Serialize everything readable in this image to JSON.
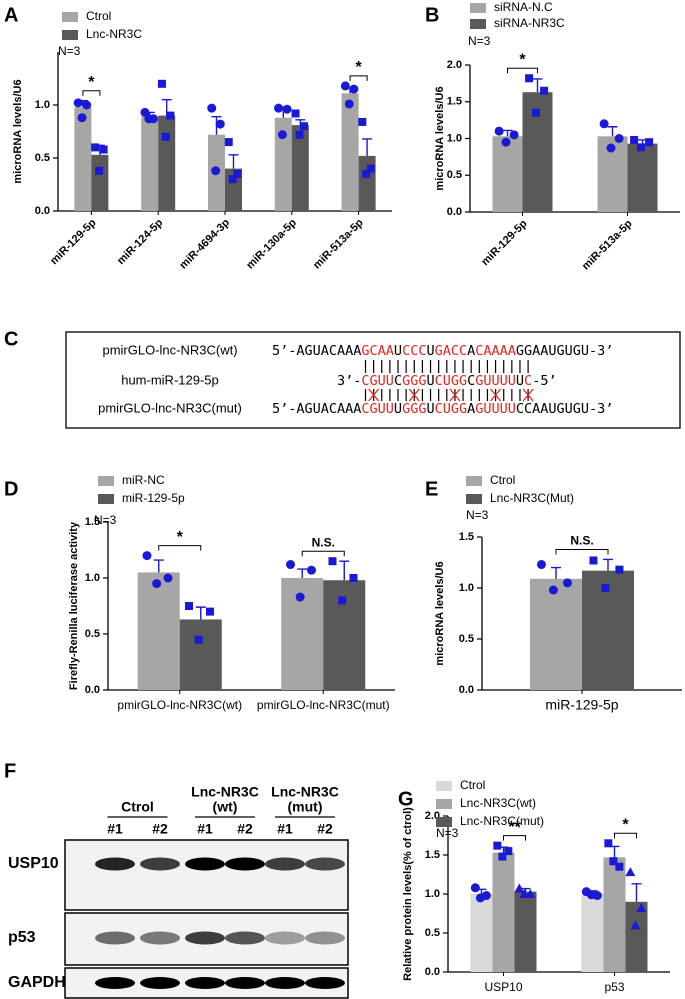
{
  "chart_data": [
    {
      "type": "bar",
      "panel_label": "A",
      "y_label": "microRNA levels/U6",
      "note": "N=3",
      "categories": [
        "miR-129-5p",
        "miR-124-5p",
        "miR-4694-3p",
        "miR-130a-5p",
        "miR-513a-5p"
      ],
      "series": [
        {
          "name": "Ctrol",
          "color": "#a6a6a6",
          "marker": "circle",
          "values": [
            0.98,
            0.89,
            0.72,
            0.88,
            1.11
          ],
          "errors": [
            0.06,
            0.04,
            0.17,
            0.1,
            0.05
          ],
          "points": [
            [
              1.02,
              1.0,
              0.88
            ],
            [
              0.93,
              0.87,
              0.87
            ],
            [
              0.97,
              0.82,
              0.38
            ],
            [
              0.97,
              0.96,
              0.72
            ],
            [
              1.18,
              1.15,
              1.01
            ]
          ]
        },
        {
          "name": "Lnc-NR3C",
          "color": "#595959",
          "marker": "square",
          "values": [
            0.53,
            0.9,
            0.4,
            0.81,
            0.52
          ],
          "errors": [
            0.09,
            0.15,
            0.13,
            0.05,
            0.16
          ],
          "points": [
            [
              0.6,
              0.58,
              0.38
            ],
            [
              1.2,
              0.9,
              0.7
            ],
            [
              0.65,
              0.35,
              0.3
            ],
            [
              0.92,
              0.8,
              0.72
            ],
            [
              0.84,
              0.4,
              0.35
            ]
          ]
        }
      ],
      "point_color": "#1a1ad6",
      "ylim": [
        0,
        1.5
      ],
      "yticks": [
        {
          "value": 0,
          "label": "0.0"
        },
        0.5,
        {
          "value": 1,
          "label": "1.0"
        }
      ],
      "rotate_x_labels": true,
      "significance": [
        {
          "text": "*",
          "category": 0
        },
        {
          "text": "*",
          "category": 4
        }
      ]
    },
    {
      "type": "bar",
      "panel_label": "B",
      "y_label": "microRNA levels/U6",
      "note": "N=3",
      "categories": [
        "miR-129-5p",
        "miR-513a-5p"
      ],
      "series": [
        {
          "name": "siRNA-N.C",
          "color": "#a6a6a6",
          "marker": "circle",
          "values": [
            1.03,
            1.03
          ],
          "errors": [
            0.08,
            0.13
          ],
          "points": [
            [
              1.1,
              1.05,
              0.95
            ],
            [
              1.2,
              1.0,
              0.87
            ]
          ]
        },
        {
          "name": "siRNA-NR3C",
          "color": "#595959",
          "marker": "square",
          "values": [
            1.63,
            0.93
          ],
          "errors": [
            0.18,
            0.05
          ],
          "points": [
            [
              1.82,
              1.65,
              1.35
            ],
            [
              0.98,
              0.95,
              0.88
            ]
          ]
        }
      ],
      "point_color": "#1a1ad6",
      "ylim": [
        0,
        2
      ],
      "yticks": [
        {
          "value": 0,
          "label": "0.0"
        },
        0.5,
        {
          "value": 1,
          "label": "1.0"
        },
        1.5,
        {
          "value": 2,
          "label": "2.0"
        }
      ],
      "rotate_x_labels": true,
      "significance": [
        {
          "text": "*",
          "category": 0
        }
      ]
    },
    {
      "type": "bar",
      "panel_label": "D",
      "y_label": "Firefly-Renilla luciferase activity",
      "note": "N=3",
      "categories": [
        "pmirGLO-lnc-NR3C(wt)",
        "pmirGLO-lnc-NR3C(mut)"
      ],
      "series": [
        {
          "name": "miR-NC",
          "color": "#a6a6a6",
          "marker": "circle",
          "values": [
            1.05,
            1.0
          ],
          "errors": [
            0.11,
            0.08
          ],
          "points": [
            [
              1.2,
              1.0,
              0.95
            ],
            [
              1.12,
              1.07,
              0.83
            ]
          ]
        },
        {
          "name": "miR-129-5p",
          "color": "#595959",
          "marker": "square",
          "values": [
            0.63,
            0.98
          ],
          "errors": [
            0.11,
            0.17
          ],
          "points": [
            [
              0.75,
              0.7,
              0.45
            ],
            [
              1.15,
              1.0,
              0.8
            ]
          ]
        }
      ],
      "point_color": "#1a1ad6",
      "ylim": [
        0,
        1.5
      ],
      "yticks": [
        {
          "value": 0,
          "label": "0.0"
        },
        0.5,
        {
          "value": 1,
          "label": "1.0"
        },
        1.5
      ],
      "rotate_x_labels": false,
      "significance": [
        {
          "text": "*",
          "category": 0
        },
        {
          "text": "N.S.",
          "category": 1
        }
      ]
    },
    {
      "type": "bar",
      "panel_label": "E",
      "y_label": "microRNA levels/U6",
      "note": "N=3",
      "categories": [
        "miR-129-5p"
      ],
      "series": [
        {
          "name": "Ctrol",
          "color": "#a6a6a6",
          "marker": "circle",
          "values": [
            1.09
          ],
          "errors": [
            0.11
          ],
          "points": [
            [
              1.23,
              1.05,
              0.98
            ]
          ]
        },
        {
          "name": "Lnc-NR3C(Mut)",
          "color": "#595959",
          "marker": "square",
          "values": [
            1.17
          ],
          "errors": [
            0.11
          ],
          "points": [
            [
              1.27,
              1.18,
              1.0
            ]
          ]
        }
      ],
      "point_color": "#1a1ad6",
      "ylim": [
        0,
        1.5
      ],
      "yticks": [
        {
          "value": 0,
          "label": "0.0"
        },
        0.5,
        {
          "value": 1,
          "label": "1.0"
        },
        1.5
      ],
      "rotate_x_labels": false,
      "significance": [
        {
          "text": "N.S.",
          "category": 0
        }
      ]
    },
    {
      "type": "bar",
      "panel_label": "G",
      "y_label": "Relative protein levels(% of ctrol)",
      "note": "N=3",
      "categories": [
        "USP10",
        "p53"
      ],
      "series": [
        {
          "name": "Ctrol",
          "color": "#d9d9d9",
          "marker": "circle",
          "values": [
            1.0,
            1.0
          ],
          "errors": [
            0.06,
            0.04
          ],
          "points": [
            [
              1.08,
              0.98,
              0.95
            ],
            [
              1.03,
              0.98,
              0.99
            ]
          ]
        },
        {
          "name": "Lnc-NR3C(wt)",
          "color": "#a6a6a6",
          "marker": "square",
          "values": [
            1.53,
            1.47
          ],
          "errors": [
            0.07,
            0.14
          ],
          "points": [
            [
              1.62,
              1.55,
              1.48
            ],
            [
              1.65,
              1.35,
              1.42
            ]
          ]
        },
        {
          "name": "Lnc-NR3C(mut)",
          "color": "#595959",
          "marker": "triangle",
          "values": [
            1.03,
            0.9
          ],
          "errors": [
            0.04,
            0.23
          ],
          "points": [
            [
              1.07,
              1.0,
              1.0
            ],
            [
              1.28,
              0.82,
              0.6
            ]
          ]
        }
      ],
      "point_color": "#1a1ad6",
      "ylim": [
        0,
        2
      ],
      "yticks": [
        {
          "value": 0,
          "label": "0.0"
        },
        0.5,
        {
          "value": 1,
          "label": "1.0"
        },
        1.5,
        {
          "value": 2,
          "label": "2.0"
        }
      ],
      "rotate_x_labels": false,
      "significance": [
        {
          "text": "**",
          "category": 0,
          "between": [
            1,
            2
          ]
        },
        {
          "text": "*",
          "category": 1,
          "between": [
            1,
            2
          ]
        }
      ]
    }
  ],
  "sequence_panel": {
    "panel_label": "C",
    "highlight_color": "#e8251f",
    "rows": [
      {
        "label": "pmirGLO-lnc-NR3C(wt)",
        "segments": [
          {
            "text": "5’-AGUACAAA",
            "highlight": false
          },
          {
            "text": "GCAA",
            "highlight": true
          },
          {
            "text": "U",
            "highlight": false
          },
          {
            "text": "CCC",
            "highlight": true
          },
          {
            "text": "U",
            "highlight": false
          },
          {
            "text": "GACC",
            "highlight": true
          },
          {
            "text": "A",
            "highlight": false
          },
          {
            "text": "CAAAA",
            "highlight": true
          },
          {
            "text": "GGAAUGUGU-3’",
            "highlight": false
          }
        ]
      },
      {
        "label": "hum-miR-129-5p",
        "segments": [
          {
            "text": "3’-",
            "highlight": false
          },
          {
            "text": "CGUU",
            "highlight": true
          },
          {
            "text": "C",
            "highlight": false
          },
          {
            "text": "GGG",
            "highlight": true
          },
          {
            "text": "U",
            "highlight": false
          },
          {
            "text": "CUGG",
            "highlight": true
          },
          {
            "text": "C",
            "highlight": false
          },
          {
            "text": "GUUUU",
            "highlight": true
          },
          {
            "text": "U",
            "highlight": false
          },
          {
            "text": "C",
            "highlight": true
          },
          {
            "text": "-5’",
            "highlight": false
          }
        ]
      },
      {
        "label": "pmirGLO-lnc-NR3C(mut)",
        "segments": [
          {
            "text": "5’-AGUACAAA",
            "highlight": false
          },
          {
            "text": "CGUU",
            "highlight": true
          },
          {
            "text": "U",
            "highlight": false
          },
          {
            "text": "GGG",
            "highlight": true
          },
          {
            "text": "U",
            "highlight": false
          },
          {
            "text": "CUGG",
            "highlight": true
          },
          {
            "text": "A",
            "highlight": false
          },
          {
            "text": "GUUUU",
            "highlight": true
          },
          {
            "text": "CCAAUGUGU-3’",
            "highlight": false
          }
        ]
      }
    ]
  },
  "western_blot": {
    "panel_label": "F",
    "groups": [
      {
        "lines": [
          "Ctrol"
        ]
      },
      {
        "lines": [
          "Lnc-NR3C",
          "(wt)"
        ]
      },
      {
        "lines": [
          "Lnc-NR3C",
          "(mut)"
        ]
      }
    ],
    "lanes": [
      "#1",
      "#2",
      "#1",
      "#2",
      "#1",
      "#2"
    ],
    "rows": [
      "USP10",
      "p53",
      "GAPDH"
    ]
  }
}
